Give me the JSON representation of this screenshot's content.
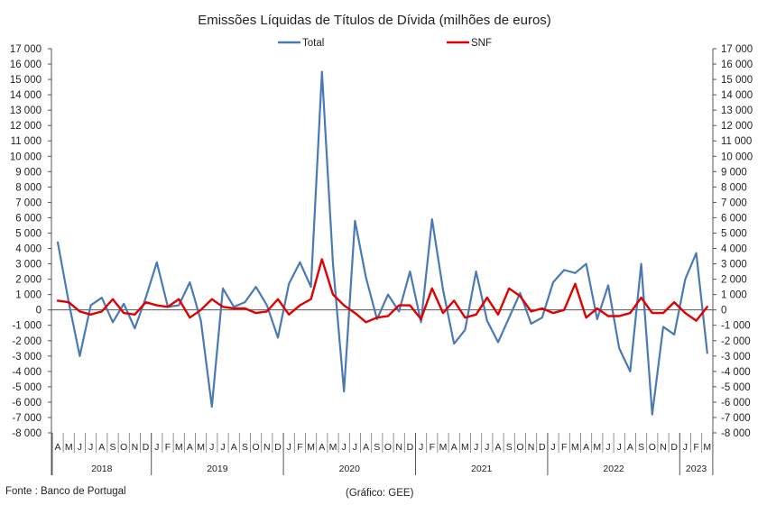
{
  "chart_data": {
    "type": "line",
    "title": "Emissões Líquidas de Títulos de Dívida (milhões de euros)",
    "xlabel": "",
    "ylabel": "",
    "ylim": [
      -8000,
      17000
    ],
    "y_ticks": [
      "17 000",
      "16 000",
      "15 000",
      "14 000",
      "13 000",
      "12 000",
      "11 000",
      "10 000",
      "9 000",
      "8 000",
      "7 000",
      "6 000",
      "5 000",
      "4 000",
      "3 000",
      "2 000",
      "1 000",
      "0",
      "-1 000",
      "-2 000",
      "-3 000",
      "-4 000",
      "-5 000",
      "-6 000",
      "-7 000",
      "-8 000"
    ],
    "grid": false,
    "legend_position": "top-center",
    "year_groups": [
      {
        "label": "2018",
        "count": 9
      },
      {
        "label": "2019",
        "count": 12
      },
      {
        "label": "2020",
        "count": 12
      },
      {
        "label": "2021",
        "count": 12
      },
      {
        "label": "2022",
        "count": 12
      },
      {
        "label": "2023",
        "count": 3
      }
    ],
    "categories": [
      "A",
      "M",
      "J",
      "J",
      "A",
      "S",
      "O",
      "N",
      "D",
      "J",
      "F",
      "M",
      "A",
      "M",
      "J",
      "J",
      "A",
      "S",
      "O",
      "N",
      "D",
      "J",
      "F",
      "M",
      "A",
      "M",
      "J",
      "J",
      "A",
      "S",
      "O",
      "N",
      "D",
      "J",
      "F",
      "M",
      "A",
      "M",
      "J",
      "J",
      "A",
      "S",
      "O",
      "N",
      "D",
      "J",
      "F",
      "M",
      "A",
      "M",
      "J",
      "J",
      "A",
      "S",
      "O",
      "N",
      "D",
      "J",
      "F",
      "M"
    ],
    "series": [
      {
        "name": "Total",
        "color": "#4a7ab5",
        "values": [
          4400,
          500,
          -3000,
          300,
          800,
          -800,
          400,
          -1200,
          800,
          3100,
          200,
          300,
          1800,
          -700,
          -6300,
          1400,
          200,
          500,
          1500,
          300,
          -1800,
          1700,
          3100,
          1500,
          15500,
          3000,
          -5300,
          5800,
          2100,
          -600,
          1000,
          -100,
          2500,
          -800,
          5900,
          1300,
          -2200,
          -1300,
          2500,
          -700,
          -2100,
          -500,
          1100,
          -900,
          -500,
          1800,
          2600,
          2400,
          3000,
          -600,
          1600,
          -2500,
          -4000,
          3000,
          -6800,
          -1100,
          -1600,
          2000,
          3700,
          -2800
        ]
      },
      {
        "name": "SNF",
        "color": "#e00000",
        "values": [
          600,
          500,
          -100,
          -300,
          -100,
          700,
          -200,
          -300,
          500,
          300,
          200,
          700,
          -500,
          0,
          700,
          200,
          100,
          100,
          -200,
          -100,
          700,
          -300,
          300,
          700,
          3300,
          1000,
          300,
          -200,
          -800,
          -500,
          -400,
          300,
          300,
          -600,
          1400,
          -200,
          600,
          -500,
          -300,
          800,
          -300,
          1400,
          900,
          -100,
          100,
          -200,
          0,
          1700,
          -500,
          100,
          -400,
          -400,
          -200,
          800,
          -200,
          -200,
          500,
          -200,
          -700,
          200
        ]
      }
    ]
  },
  "footer": {
    "source": "Fonte : Banco de Portugal",
    "credit": "(Gráfico: GEE)"
  }
}
